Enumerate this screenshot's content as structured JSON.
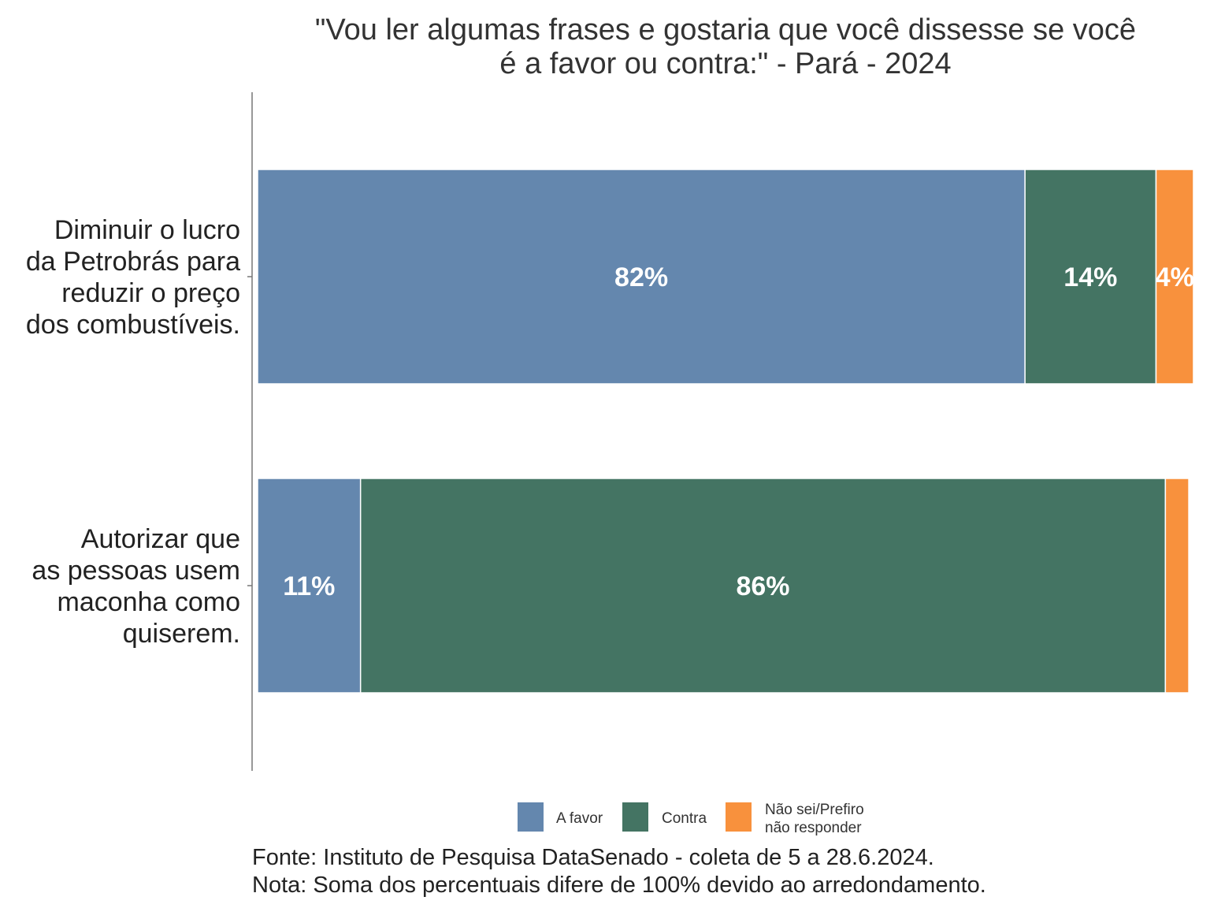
{
  "chart_data": {
    "type": "bar",
    "orientation": "horizontal",
    "stacked": true,
    "title_lines": [
      "\"Vou ler algumas frases e gostaria que você dissesse se você",
      "é a favor ou contra:\" - Pará - 2024"
    ],
    "categories": [
      {
        "label_lines": [
          "Diminuir o lucro",
          "da Petrobrás para",
          "reduzir o preço",
          "dos combustíveis."
        ]
      },
      {
        "label_lines": [
          "Autorizar que",
          "as pessoas usem",
          "maconha como",
          "quiserem."
        ]
      }
    ],
    "series": [
      {
        "name": "A favor",
        "color": "#6487AE",
        "values": [
          82,
          11
        ],
        "labels": [
          "82%",
          "11%"
        ]
      },
      {
        "name": "Contra",
        "color": "#447463",
        "values": [
          14,
          86
        ],
        "labels": [
          "14%",
          "86%"
        ]
      },
      {
        "name_lines": [
          "Não sei/Prefiro",
          "não responder"
        ],
        "color": "#F8913D",
        "values": [
          4,
          2.5
        ],
        "labels": [
          "4%",
          ""
        ]
      }
    ],
    "xlim": [
      0,
      100
    ],
    "grid": false,
    "legend_position": "bottom",
    "caption_lines": [
      "Fonte: Instituto de Pesquisa DataSenado - coleta de 5 a 28.6.2024.",
      "Nota: Soma dos percentuais difere de 100% devido ao arredondamento."
    ]
  }
}
